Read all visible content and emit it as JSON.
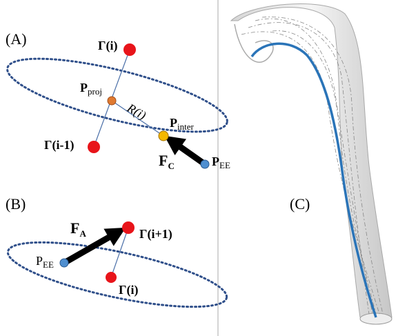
{
  "panel_a": {
    "label": "(A)",
    "gamma_i": "Γ(i)",
    "p_proj": {
      "main": "P",
      "sub": "proj"
    },
    "radius": "R(i)",
    "p_inter": {
      "main": "P",
      "sub": "inter"
    },
    "gamma_prev": "Γ(i-1)",
    "force": {
      "main": "F",
      "sub": "C"
    },
    "p_ee": {
      "main": "P",
      "sub": "EE"
    }
  },
  "panel_b": {
    "label": "(B)",
    "force": {
      "main": "F",
      "sub": "A"
    },
    "gamma_next": "Γ(i+1)",
    "p_ee": {
      "main": "P",
      "sub": "EE"
    },
    "gamma_i": "Γ(i)"
  },
  "panel_c": {
    "label": "(C)"
  }
}
